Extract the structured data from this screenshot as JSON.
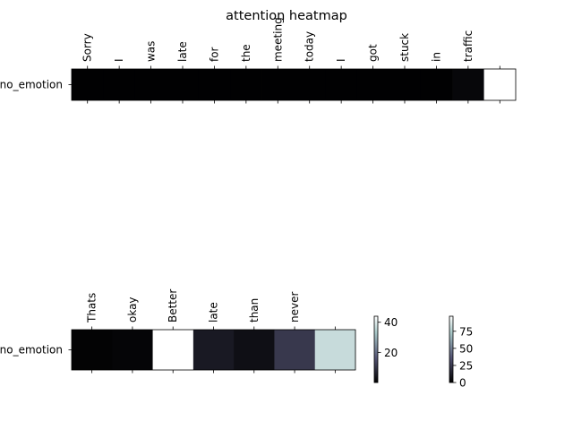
{
  "chart_data": [
    {
      "type": "heatmap",
      "title": "attention heatmap",
      "row_labels": [
        "no_emotion"
      ],
      "x_tick_labels": [
        "Sorry",
        "I",
        "was",
        "late",
        "for",
        "the",
        "meeting",
        "today",
        "I",
        "got",
        "stuck",
        "in",
        "traffic",
        ""
      ],
      "values": [
        [
          0.5,
          0.5,
          0.5,
          0.5,
          0.5,
          0.5,
          0.5,
          0.5,
          0.5,
          0.5,
          0.5,
          0.5,
          3,
          97
        ]
      ],
      "colormap": "bone",
      "colorbar": {
        "range": [
          0,
          97
        ],
        "ticks": [
          0,
          25,
          50,
          75
        ]
      }
    },
    {
      "type": "heatmap",
      "title": "",
      "row_labels": [
        "no_emotion"
      ],
      "x_tick_labels": [
        "Thats",
        "okay",
        "Better",
        "late",
        "than",
        "never",
        ""
      ],
      "values": [
        [
          0.5,
          1,
          44,
          5,
          3,
          11,
          37
        ]
      ],
      "colormap": "bone",
      "colorbar": {
        "range": [
          0,
          44
        ],
        "ticks": [
          20,
          40
        ]
      }
    }
  ]
}
